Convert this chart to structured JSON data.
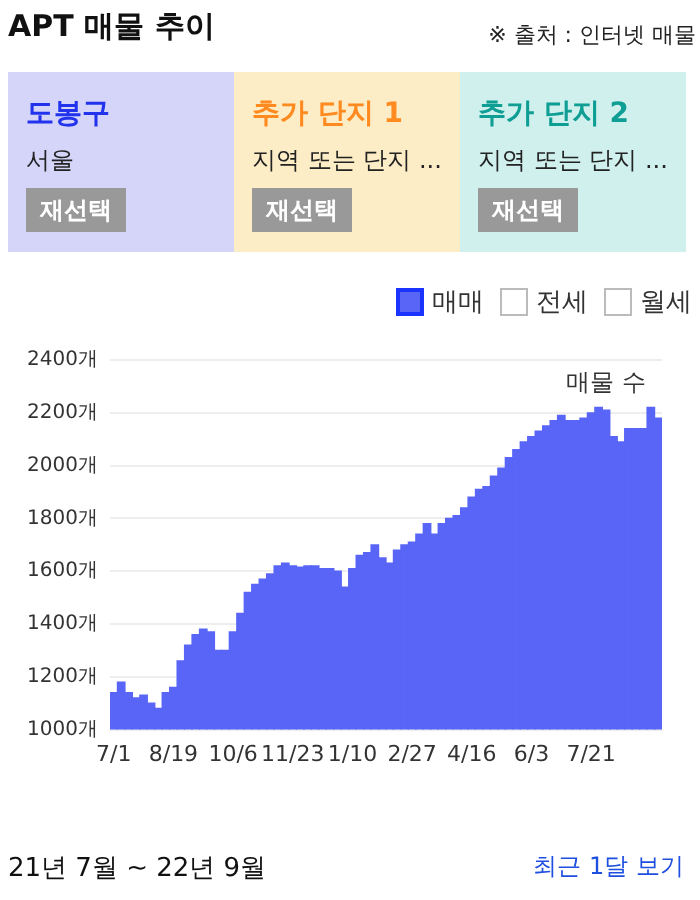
{
  "chart_data": {
    "type": "bar",
    "title": "APT 매물 추이",
    "ylabel": "매물 수",
    "annotations": [
      "※ 출처 : 인터넷 매물",
      "도봉구",
      "서울",
      "재선택",
      "추가 단지 1",
      "지역 또는 단지 ...",
      "재선택",
      "추가 단지 2",
      "지역 또는 단지 ...",
      "재선택",
      "전세",
      "월세",
      "21년 7월 ~ 22년 9월",
      "최근 1달 보기"
    ],
    "categories": [
      "7/1",
      null,
      null,
      null,
      null,
      null,
      null,
      null,
      "8/19",
      null,
      null,
      null,
      null,
      null,
      null,
      null,
      "10/6",
      null,
      null,
      null,
      null,
      null,
      null,
      null,
      "11/23",
      null,
      null,
      null,
      null,
      null,
      null,
      null,
      "1/10",
      null,
      null,
      null,
      null,
      null,
      null,
      null,
      "2/27",
      null,
      null,
      null,
      null,
      null,
      null,
      null,
      "4/16",
      null,
      null,
      null,
      null,
      null,
      null,
      null,
      "6/3",
      null,
      null,
      null,
      null,
      null,
      null,
      null,
      "7/21",
      null,
      null,
      null,
      null,
      null,
      null,
      null,
      null,
      null
    ],
    "series": [
      {
        "name": "매매",
        "color": "#5865f6",
        "values": [
          1140,
          1180,
          1140,
          1120,
          1130,
          1100,
          1080,
          1140,
          1160,
          1260,
          1320,
          1360,
          1380,
          1370,
          1300,
          1300,
          1370,
          1440,
          1520,
          1550,
          1570,
          1590,
          1620,
          1630,
          1620,
          1615,
          1620,
          1620,
          1610,
          1610,
          1600,
          1540,
          1610,
          1660,
          1670,
          1700,
          1650,
          1630,
          1680,
          1700,
          1710,
          1740,
          1780,
          1740,
          1780,
          1800,
          1810,
          1840,
          1880,
          1910,
          1920,
          1960,
          1990,
          2030,
          2060,
          2090,
          2110,
          2130,
          2150,
          2170,
          2190,
          2170,
          2170,
          2180,
          2200,
          2220,
          2210,
          2110,
          2090,
          2140,
          2140,
          2140,
          2220,
          2180
        ]
      }
    ],
    "ylim": [
      1000,
      2400
    ],
    "yticks": [
      {
        "value": 1000,
        "label": "1000개"
      },
      {
        "value": 1200,
        "label": "1200개"
      },
      {
        "value": 1400,
        "label": "1400개"
      },
      {
        "value": 1600,
        "label": "1600개"
      },
      {
        "value": 1800,
        "label": "1800개"
      },
      {
        "value": 2000,
        "label": "2000개"
      },
      {
        "value": 2200,
        "label": "2200개"
      },
      {
        "value": 2400,
        "label": "2400개"
      }
    ],
    "grid": "y",
    "legend": "top right"
  }
}
